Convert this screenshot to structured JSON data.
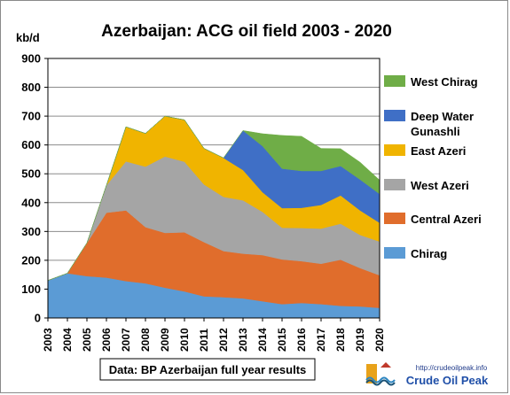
{
  "chart_data": {
    "type": "area",
    "stacked": true,
    "title": "Azerbaijan:  ACG oil field 2003 - 2020",
    "ylabel": "kb/d",
    "xlabel": "",
    "ylim": [
      0,
      900
    ],
    "yticks": [
      "0",
      "100",
      "200",
      "300",
      "400",
      "500",
      "600",
      "700",
      "800",
      "900"
    ],
    "categories": [
      "2003",
      "2004",
      "2005",
      "2006",
      "2007",
      "2008",
      "2009",
      "2010",
      "2011",
      "2012",
      "2013",
      "2014",
      "2015",
      "2016",
      "2017",
      "2018",
      "2019",
      "2020"
    ],
    "grid": true,
    "legend_position": "right",
    "series": [
      {
        "name": "Chirag",
        "color": "#5b9bd5",
        "values": [
          130,
          155,
          145,
          140,
          128,
          120,
          105,
          92,
          75,
          72,
          68,
          58,
          48,
          52,
          48,
          42,
          40,
          35
        ]
      },
      {
        "name": "Central Azeri",
        "color": "#e06d2c",
        "values": [
          0,
          0,
          115,
          225,
          245,
          195,
          190,
          205,
          188,
          160,
          155,
          160,
          155,
          145,
          140,
          160,
          133,
          113
        ]
      },
      {
        "name": "West Azeri",
        "color": "#a5a5a5",
        "values": [
          0,
          0,
          0,
          95,
          170,
          210,
          265,
          245,
          200,
          188,
          185,
          150,
          110,
          115,
          122,
          125,
          115,
          117
        ]
      },
      {
        "name": "East Azeri",
        "color": "#f0b400",
        "values": [
          0,
          0,
          0,
          0,
          120,
          115,
          140,
          145,
          125,
          135,
          105,
          68,
          68,
          70,
          82,
          98,
          85,
          65
        ]
      },
      {
        "name": "Deep Water Gunashli",
        "color": "#3f6fc6",
        "values": [
          0,
          0,
          0,
          0,
          0,
          0,
          0,
          0,
          0,
          0,
          137,
          160,
          137,
          128,
          118,
          102,
          107,
          100
        ]
      },
      {
        "name": "West Chirag",
        "color": "#6fad47",
        "values": [
          0,
          0,
          0,
          0,
          0,
          0,
          0,
          0,
          0,
          0,
          0,
          43,
          115,
          120,
          78,
          60,
          60,
          48
        ]
      }
    ],
    "legend_order": [
      "West Chirag",
      "Deep Water Gunashli",
      "East Azeri",
      "West Azeri",
      "Central Azeri",
      "Chirag"
    ],
    "source_note": "Data: BP Azerbaijan full year results"
  },
  "logo": {
    "url": "http://crudeoilpeak.info",
    "name": "Crude Oil Peak"
  }
}
